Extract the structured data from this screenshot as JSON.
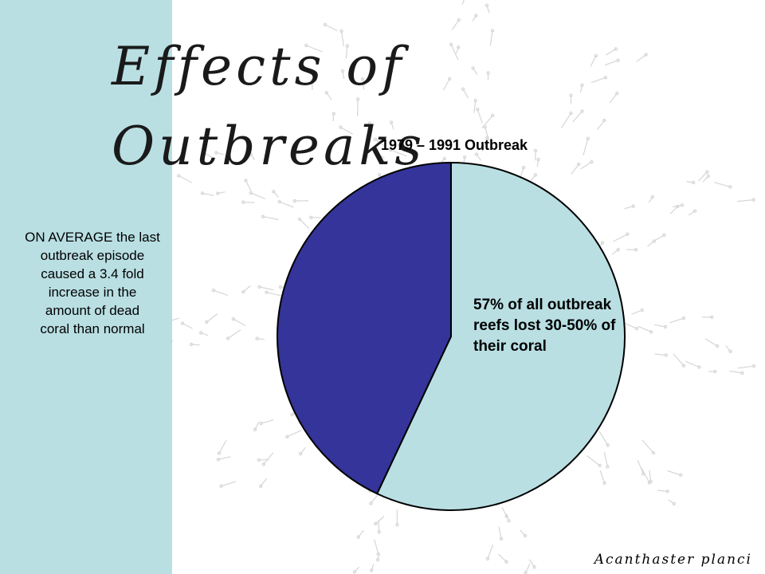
{
  "slide": {
    "title": "Effects of Outbreaks",
    "side_note": [
      "ON AVERAGE the last",
      "outbreak episode",
      "caused a 3.4 fold",
      "increase in the",
      "amount of dead",
      "coral than normal"
    ],
    "credit": "Acanthaster planci"
  },
  "colors": {
    "side_band": "#b9dfe3",
    "slice_light": "#b9dfe3",
    "slice_dark": "#34349a"
  },
  "chart_data": {
    "type": "pie",
    "title": "1979 – 1991 Outbreak",
    "slices": [
      {
        "value": 57,
        "color": "#b9dfe3"
      },
      {
        "value": 43,
        "color": "#34349a"
      }
    ],
    "annotation": "57% of all outbreak reefs lost 30-50% of their coral"
  }
}
